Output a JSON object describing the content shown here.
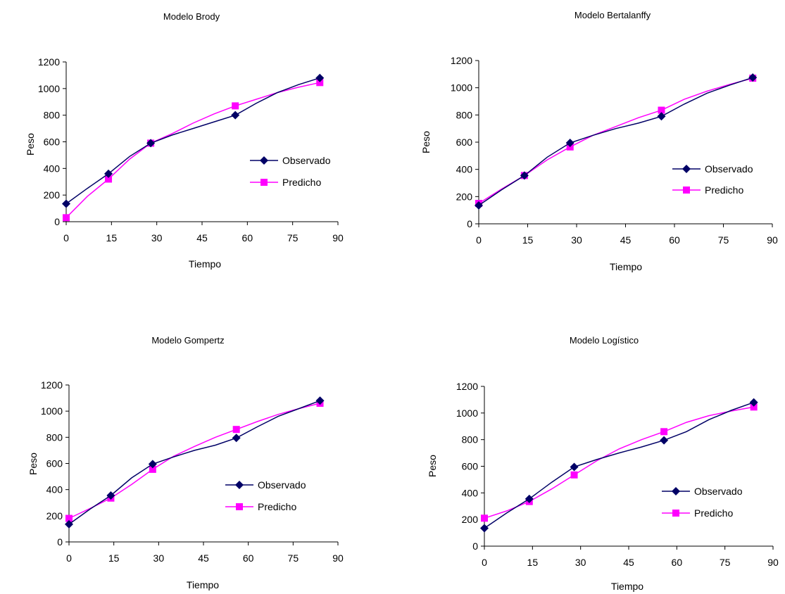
{
  "colors": {
    "observed": "#000066",
    "predicted": "#ff00ff",
    "axis": "#000000",
    "background": "#ffffff"
  },
  "chart_data": [
    {
      "type": "line",
      "title": "Modelo Brody",
      "xlabel": "Tiempo",
      "ylabel": "Peso",
      "xlim": [
        0,
        90
      ],
      "ylim": [
        0,
        1200
      ],
      "xticks": [
        "0",
        "15",
        "30",
        "45",
        "60",
        "75",
        "90"
      ],
      "yticks": [
        "0",
        "200",
        "400",
        "600",
        "800",
        "1000",
        "1200"
      ],
      "grid": false,
      "legend": "right",
      "series": [
        {
          "name": "Observado",
          "marker": "diamond",
          "x": [
            0,
            7,
            14,
            21,
            28,
            35,
            42,
            49,
            56,
            63,
            70,
            77,
            84
          ],
          "y": [
            135,
            250,
            360,
            490,
            590,
            650,
            700,
            750,
            800,
            890,
            970,
            1030,
            1080
          ]
        },
        {
          "name": "Predicho",
          "marker": "square",
          "x": [
            0,
            7,
            14,
            21,
            28,
            35,
            42,
            49,
            56,
            63,
            70,
            77,
            84
          ],
          "y": [
            30,
            190,
            320,
            470,
            590,
            660,
            740,
            810,
            870,
            920,
            970,
            1010,
            1045
          ]
        }
      ]
    },
    {
      "type": "line",
      "title": "Modelo Bertalanffy",
      "xlabel": "Tiempo",
      "ylabel": "Peso",
      "xlim": [
        0,
        90
      ],
      "ylim": [
        0,
        1200
      ],
      "xticks": [
        "0",
        "15",
        "30",
        "45",
        "60",
        "75",
        "90"
      ],
      "yticks": [
        "0",
        "200",
        "400",
        "600",
        "800",
        "1000",
        "1200"
      ],
      "grid": false,
      "legend": "right",
      "series": [
        {
          "name": "Observado",
          "marker": "diamond",
          "x": [
            0,
            7,
            14,
            21,
            28,
            35,
            42,
            49,
            56,
            63,
            70,
            77,
            84
          ],
          "y": [
            135,
            250,
            355,
            490,
            595,
            650,
            700,
            740,
            790,
            880,
            960,
            1020,
            1075
          ]
        },
        {
          "name": "Predicho",
          "marker": "square",
          "x": [
            0,
            7,
            14,
            21,
            28,
            35,
            42,
            49,
            56,
            63,
            70,
            77,
            84
          ],
          "y": [
            150,
            255,
            355,
            470,
            565,
            650,
            715,
            780,
            835,
            915,
            975,
            1025,
            1070
          ]
        }
      ]
    },
    {
      "type": "line",
      "title": "Modelo Gompertz",
      "xlabel": "Tiempo",
      "ylabel": "Peso",
      "xlim": [
        0,
        90
      ],
      "ylim": [
        0,
        1200
      ],
      "xticks": [
        "0",
        "15",
        "30",
        "45",
        "60",
        "75",
        "90"
      ],
      "yticks": [
        "0",
        "200",
        "400",
        "600",
        "800",
        "1000",
        "1200"
      ],
      "grid": false,
      "legend": "right",
      "series": [
        {
          "name": "Observado",
          "marker": "diamond",
          "x": [
            0,
            7,
            14,
            21,
            28,
            35,
            42,
            49,
            56,
            63,
            70,
            77,
            84
          ],
          "y": [
            135,
            250,
            355,
            490,
            595,
            650,
            700,
            740,
            795,
            880,
            960,
            1020,
            1080
          ]
        },
        {
          "name": "Predicho",
          "marker": "square",
          "x": [
            0,
            7,
            14,
            21,
            28,
            35,
            42,
            49,
            56,
            63,
            70,
            77,
            84
          ],
          "y": [
            180,
            255,
            335,
            440,
            555,
            655,
            730,
            800,
            860,
            920,
            975,
            1020,
            1060
          ]
        }
      ]
    },
    {
      "type": "line",
      "title": "Modelo Logístico",
      "xlabel": "Tiempo",
      "ylabel": "Peso",
      "xlim": [
        0,
        90
      ],
      "ylim": [
        0,
        1200
      ],
      "xticks": [
        "0",
        "15",
        "30",
        "45",
        "60",
        "75",
        "90"
      ],
      "yticks": [
        "0",
        "200",
        "400",
        "600",
        "800",
        "1000",
        "1200"
      ],
      "grid": false,
      "legend": "right",
      "series": [
        {
          "name": "Observado",
          "marker": "diamond",
          "x": [
            0,
            7,
            14,
            21,
            28,
            35,
            42,
            49,
            56,
            63,
            70,
            77,
            84
          ],
          "y": [
            135,
            250,
            355,
            480,
            595,
            650,
            700,
            745,
            795,
            860,
            950,
            1020,
            1080
          ]
        },
        {
          "name": "Predicho",
          "marker": "square",
          "x": [
            0,
            7,
            14,
            21,
            28,
            35,
            42,
            49,
            56,
            63,
            70,
            77,
            84
          ],
          "y": [
            210,
            265,
            335,
            430,
            535,
            640,
            730,
            800,
            860,
            930,
            980,
            1015,
            1045
          ]
        }
      ]
    }
  ]
}
